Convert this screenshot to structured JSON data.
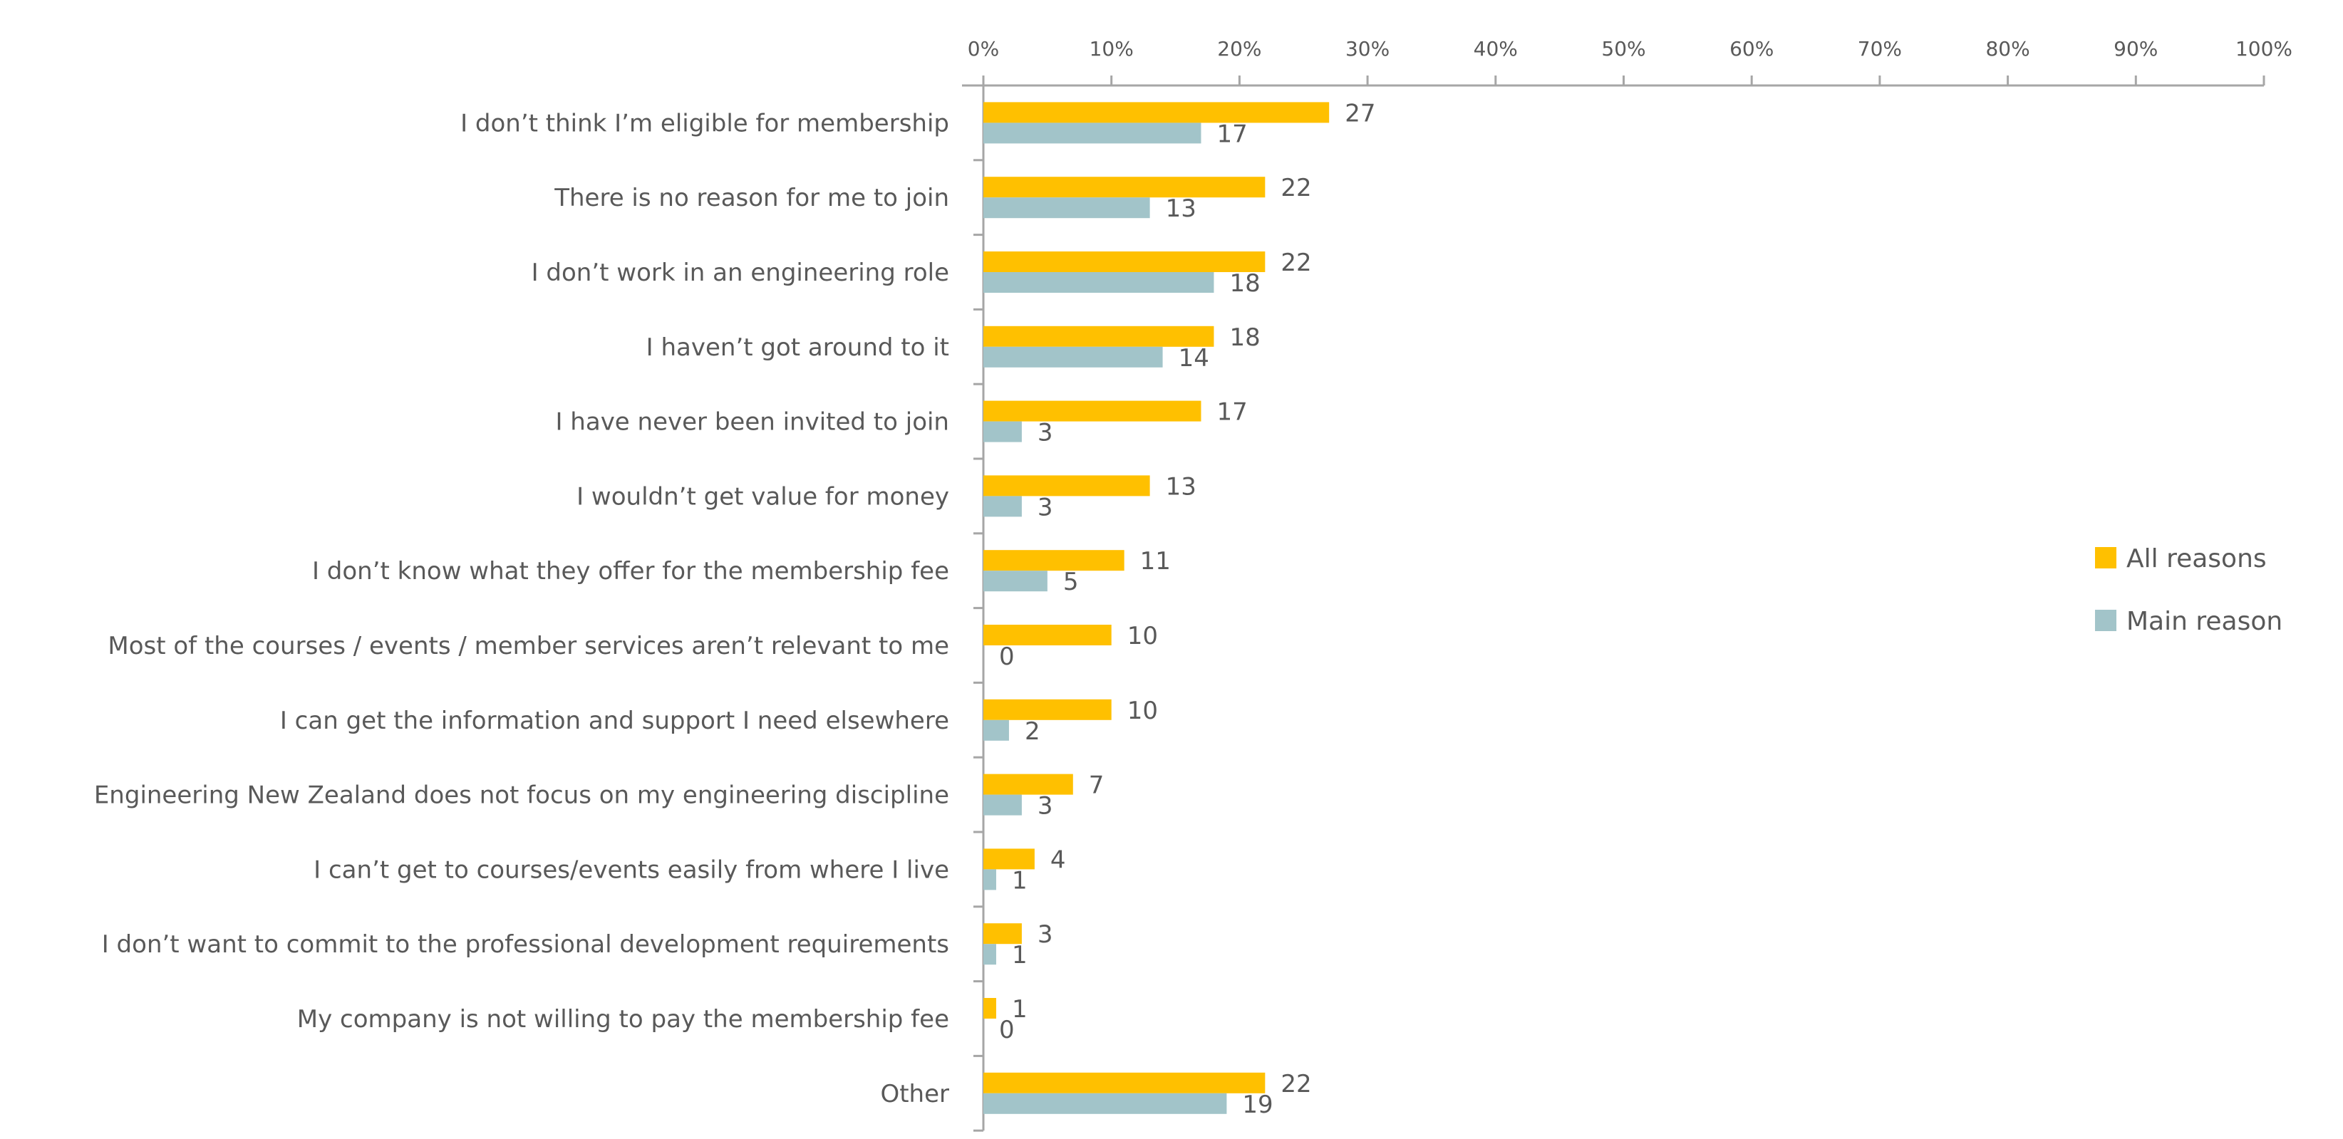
{
  "chart_data": {
    "type": "bar",
    "orientation": "horizontal",
    "title": "",
    "xlabel": "",
    "ylabel": "",
    "xlim": [
      0,
      100
    ],
    "x_tick_labels": [
      "0%",
      "10%",
      "20%",
      "30%",
      "40%",
      "50%",
      "60%",
      "70%",
      "80%",
      "90%",
      "100%"
    ],
    "x_axis_position": "top",
    "grid": false,
    "legend_position": "right",
    "categories": [
      "I don’t think I’m eligible for membership",
      "There is no reason for me to join",
      "I don’t work in an engineering role",
      "I haven’t got around to it",
      "I have never been invited to join",
      "I wouldn’t get value for money",
      "I don’t know what they offer for the membership fee",
      "Most of the courses / events / member services aren’t relevant to me",
      "I can get the information and support I need elsewhere",
      "Engineering New Zealand does not focus on my engineering discipline",
      "I can’t get to courses/events easily from where I live",
      "I don’t want to commit to the professional development requirements",
      "My company is not willing to pay the membership fee",
      "Other"
    ],
    "series": [
      {
        "name": "All reasons",
        "color": "#FFC000",
        "values": [
          27,
          22,
          22,
          18,
          17,
          13,
          11,
          10,
          10,
          7,
          4,
          3,
          1,
          22
        ]
      },
      {
        "name": "Main reason",
        "color": "#A2C4C9",
        "values": [
          17,
          13,
          18,
          14,
          3,
          3,
          5,
          0,
          2,
          3,
          1,
          1,
          0,
          19
        ]
      }
    ]
  }
}
